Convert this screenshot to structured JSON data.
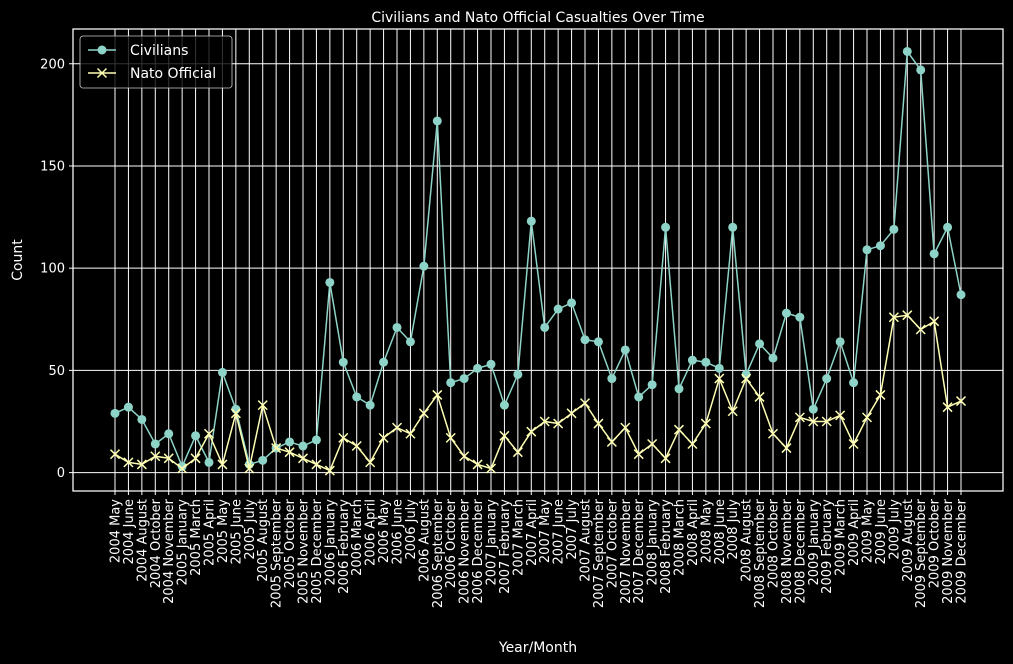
{
  "chart_data": {
    "type": "line",
    "title": "Civilians and Nato Official Casualties Over Time",
    "xlabel": "Year/Month",
    "ylabel": "Count",
    "ylim": [
      -9,
      217
    ],
    "yticks": [
      0,
      50,
      100,
      150,
      200
    ],
    "grid": true,
    "legend_position": "top-left",
    "background": "#000000",
    "foreground": "#ffffff",
    "categories": [
      "2004 May",
      "2004 June",
      "2004 August",
      "2004 October",
      "2004 November",
      "2005 January",
      "2005 March",
      "2005 April",
      "2005 May",
      "2005 June",
      "2005 July",
      "2005 August",
      "2005 September",
      "2005 October",
      "2005 November",
      "2005 December",
      "2006 January",
      "2006 February",
      "2006 March",
      "2006 April",
      "2006 May",
      "2006 June",
      "2006 July",
      "2006 August",
      "2006 September",
      "2006 October",
      "2006 November",
      "2006 December",
      "2007 January",
      "2007 February",
      "2007 March",
      "2007 April",
      "2007 May",
      "2007 June",
      "2007 July",
      "2007 August",
      "2007 September",
      "2007 October",
      "2007 November",
      "2007 December",
      "2008 January",
      "2008 February",
      "2008 March",
      "2008 April",
      "2008 May",
      "2008 June",
      "2008 July",
      "2008 August",
      "2008 September",
      "2008 October",
      "2008 November",
      "2008 December",
      "2009 January",
      "2009 February",
      "2009 March",
      "2009 April",
      "2009 May",
      "2009 June",
      "2009 July",
      "2009 August",
      "2009 September",
      "2009 October",
      "2009 November",
      "2009 December"
    ],
    "series": [
      {
        "name": "Civilians",
        "color": "#8dd3c7",
        "marker": "circle",
        "values": [
          29,
          32,
          26,
          14,
          19,
          3,
          18,
          5,
          49,
          31,
          4,
          6,
          12,
          15,
          13,
          16,
          93,
          54,
          37,
          33,
          54,
          71,
          64,
          101,
          172,
          44,
          46,
          51,
          53,
          33,
          48,
          123,
          71,
          80,
          83,
          65,
          64,
          46,
          60,
          37,
          43,
          120,
          41,
          55,
          54,
          51,
          120,
          48,
          63,
          56,
          78,
          76,
          31,
          46,
          64,
          44,
          109,
          111,
          119,
          206,
          197,
          107,
          120,
          87
        ]
      },
      {
        "name": "Nato Official",
        "color": "#ffffb3",
        "marker": "x",
        "values": [
          9,
          5,
          4,
          8,
          7,
          2,
          7,
          19,
          4,
          29,
          2,
          33,
          12,
          10,
          7,
          4,
          1,
          17,
          13,
          5,
          17,
          22,
          19,
          29,
          38,
          17,
          8,
          4,
          2,
          18,
          10,
          20,
          25,
          24,
          29,
          34,
          24,
          15,
          22,
          9,
          14,
          7,
          21,
          14,
          24,
          46,
          30,
          46,
          37,
          19,
          12,
          27,
          25,
          25,
          28,
          14,
          27,
          38,
          76,
          77,
          70,
          74,
          32,
          35
        ]
      }
    ]
  }
}
